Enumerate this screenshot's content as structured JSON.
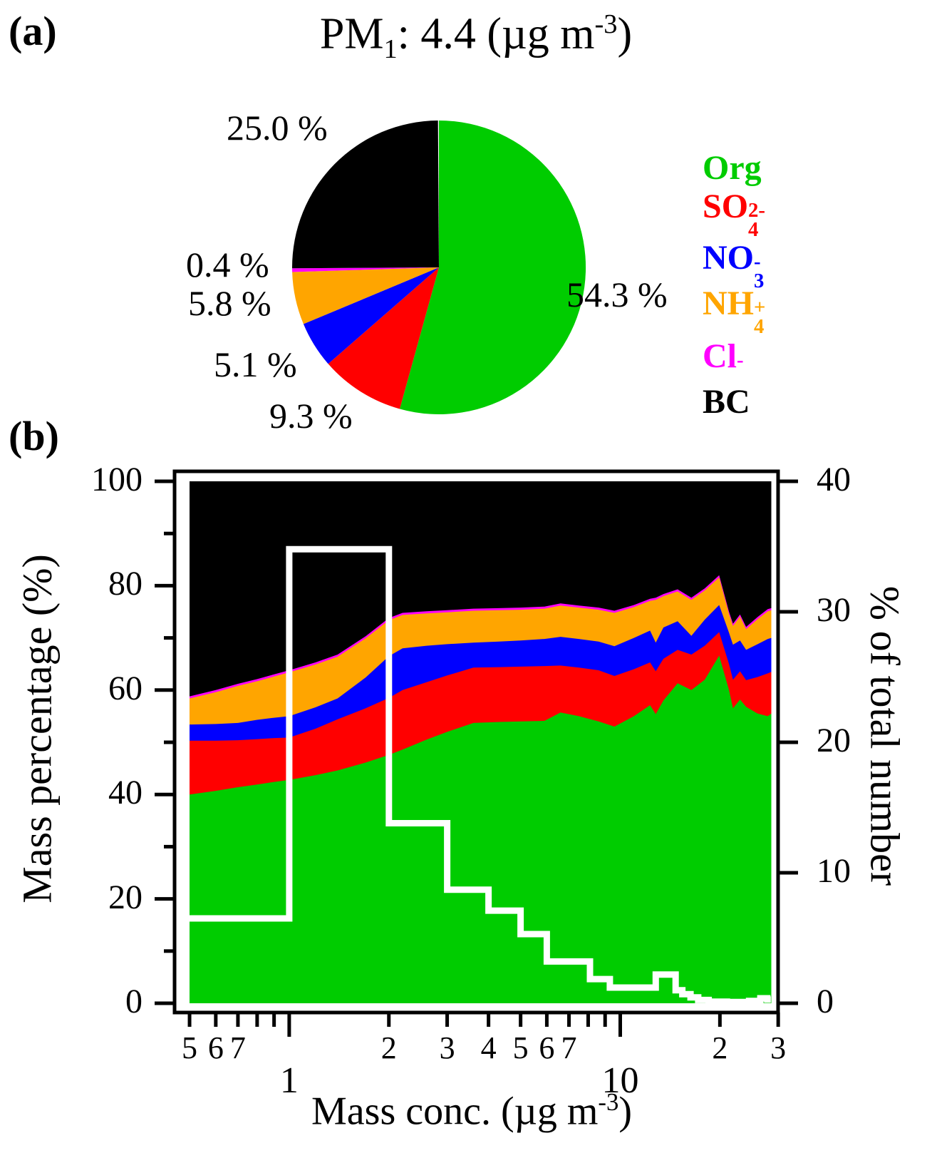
{
  "panel_a": {
    "label": "(a)",
    "title": {
      "pm": "PM",
      "sub": "1",
      "mid": ": 4.4 (µg m",
      "sup": "-3",
      "end": ")"
    },
    "legend": {
      "items": [
        {
          "text": "Org",
          "sub": "",
          "sup": "",
          "color": "#00CC00"
        },
        {
          "text": "SO",
          "sub": "4",
          "sup": "2-",
          "color": "#FF0000"
        },
        {
          "text": "NO",
          "sub": "3",
          "sup": "-",
          "color": "#0000FF"
        },
        {
          "text": "NH",
          "sub": "4",
          "sup": "+",
          "color": "#FFA500"
        },
        {
          "text": "Cl",
          "sub": "",
          "sup": "-",
          "color": "#FF00FF"
        },
        {
          "text": "BC",
          "sub": "",
          "sup": "",
          "color": "#000000"
        }
      ]
    }
  },
  "panel_b": {
    "label": "(b)",
    "y_left_title": "Mass percentage (%)",
    "y_right_title": "% of total number",
    "x_title_main": "Mass conc. (µg m",
    "x_title_sup": "-3",
    "x_title_end": ")"
  },
  "chart_data": [
    {
      "type": "pie",
      "title": "PM1: 4.4 (µg m-3)",
      "slices": [
        {
          "name": "Org",
          "pct": 54.3,
          "color": "#00CC00",
          "label": "54.3 %"
        },
        {
          "name": "SO4",
          "pct": 9.3,
          "color": "#FF0000",
          "label": "9.3 %"
        },
        {
          "name": "NO3",
          "pct": 5.1,
          "color": "#0000FF",
          "label": "5.1 %"
        },
        {
          "name": "NH4",
          "pct": 5.8,
          "color": "#FFA500",
          "label": "5.8 %"
        },
        {
          "name": "Cl",
          "pct": 0.4,
          "color": "#FF00FF",
          "label": "0.4 %"
        },
        {
          "name": "BC",
          "pct": 25.0,
          "color": "#000000",
          "label": "25.0 %"
        }
      ],
      "legend_position": "right"
    },
    {
      "type": "area",
      "xlabel": "Mass conc. (µg m-3)",
      "ylabel_left": "Mass percentage (%)",
      "ylabel_right": "% of total number",
      "x_log": true,
      "xlim": [
        0.45,
        30
      ],
      "ylim_left": [
        0,
        100
      ],
      "ylim_right": [
        0,
        40
      ],
      "grid": false,
      "series_order_bottom_to_top": [
        "Org",
        "SO4",
        "NO3",
        "NH4",
        "Cl",
        "BC"
      ],
      "colors": {
        "org": "#00CC00",
        "so4": "#FF0000",
        "no3": "#0000FF",
        "nh4": "#FFA500",
        "cl": "#FF00FF",
        "bc": "#000000"
      },
      "note": "samples are [x_ugm3, org_top%, so4_top%, no3_top%, nh4_top%, cl_top%]; BC fills from cl_top to 100",
      "samples": [
        [
          0.5,
          40.0,
          50.3,
          53.4,
          58.4,
          58.8
        ],
        [
          0.6,
          40.7,
          50.3,
          53.5,
          59.6,
          60.0
        ],
        [
          0.7,
          41.4,
          50.4,
          53.7,
          60.8,
          61.2
        ],
        [
          0.8,
          41.9,
          50.6,
          54.3,
          61.7,
          62.1
        ],
        [
          0.9,
          42.4,
          50.8,
          54.7,
          62.6,
          63.0
        ],
        [
          1.0,
          42.8,
          50.9,
          55.0,
          63.4,
          63.8
        ],
        [
          1.2,
          43.7,
          52.6,
          56.7,
          64.9,
          65.3
        ],
        [
          1.4,
          44.6,
          54.4,
          58.4,
          66.4,
          66.8
        ],
        [
          1.7,
          46.1,
          56.5,
          62.4,
          69.9,
          70.3
        ],
        [
          2.0,
          47.6,
          58.5,
          66.5,
          73.4,
          73.8
        ],
        [
          2.2,
          48.6,
          60.0,
          68.0,
          74.4,
          74.8
        ],
        [
          2.6,
          50.5,
          61.5,
          68.5,
          74.7,
          75.1
        ],
        [
          3.0,
          52.0,
          62.8,
          68.8,
          74.9,
          75.3
        ],
        [
          3.6,
          53.7,
          64.3,
          69.1,
          75.2,
          75.6
        ],
        [
          4.3,
          53.9,
          64.4,
          69.3,
          75.3,
          75.7
        ],
        [
          5.0,
          54.0,
          64.5,
          69.5,
          75.4,
          75.8
        ],
        [
          5.9,
          54.1,
          64.6,
          69.8,
          75.6,
          76.0
        ],
        [
          6.6,
          55.7,
          64.7,
          70.2,
          76.2,
          76.6
        ],
        [
          7.5,
          55.0,
          64.3,
          69.8,
          75.8,
          76.2
        ],
        [
          8.6,
          54.0,
          63.8,
          69.3,
          75.4,
          75.8
        ],
        [
          9.6,
          53.0,
          62.7,
          68.4,
          74.8,
          75.2
        ],
        [
          11.0,
          55.0,
          64.0,
          70.0,
          75.9,
          76.3
        ],
        [
          12.3,
          57.1,
          65.3,
          71.4,
          77.1,
          77.5
        ],
        [
          12.8,
          55.4,
          63.6,
          69.1,
          77.3,
          77.7
        ],
        [
          13.5,
          58.0,
          66.0,
          72.0,
          78.0,
          78.4
        ],
        [
          14.9,
          61.3,
          67.7,
          73.2,
          78.9,
          79.3
        ],
        [
          16.4,
          60.0,
          66.8,
          70.4,
          77.3,
          77.7
        ],
        [
          18.0,
          62.0,
          68.5,
          73.5,
          79.1,
          79.5
        ],
        [
          19.9,
          66.6,
          71.1,
          76.3,
          81.6,
          82.0
        ],
        [
          21.3,
          60.0,
          65.0,
          71.0,
          74.6,
          75.0
        ],
        [
          21.9,
          56.5,
          62.0,
          68.7,
          72.3,
          72.7
        ],
        [
          23.0,
          58.2,
          63.6,
          69.5,
          74.1,
          74.5
        ],
        [
          24.0,
          56.8,
          61.9,
          67.7,
          71.7,
          72.1
        ],
        [
          26.0,
          55.5,
          62.5,
          68.8,
          73.6,
          74.0
        ],
        [
          27.9,
          55.0,
          63.2,
          69.8,
          75.1,
          75.5
        ],
        [
          28.6,
          55.5,
          63.5,
          70.0,
          75.3,
          75.7
        ]
      ],
      "number_step": {
        "axis": "right",
        "color": "#FFFFFF",
        "note": "runs are [x_start, x_end, percent_of_total_number]",
        "runs": [
          [
            0.46,
            1,
            6.5
          ],
          [
            1,
            2,
            34.8
          ],
          [
            2,
            3,
            13.8
          ],
          [
            3,
            4,
            8.7
          ],
          [
            4,
            5,
            7.1
          ],
          [
            5,
            6,
            5.3
          ],
          [
            6,
            8.1,
            3.2
          ],
          [
            8.1,
            9.3,
            1.85
          ],
          [
            9.3,
            12.8,
            1.2
          ],
          [
            12.8,
            14.7,
            2.2
          ],
          [
            14.7,
            15.4,
            1.0
          ],
          [
            15.4,
            16.3,
            0.7
          ],
          [
            16.3,
            17.2,
            0.45
          ],
          [
            17.2,
            18.5,
            0.25
          ],
          [
            18.5,
            21,
            0.12
          ],
          [
            21,
            24.5,
            0.1
          ],
          [
            24.5,
            26.5,
            0.18
          ],
          [
            26.5,
            27.8,
            0.38
          ],
          [
            27.8,
            28.5,
            0.28
          ]
        ]
      },
      "axes": {
        "left_major_ticks": [
          {
            "label": "0",
            "value": 0
          },
          {
            "label": "20",
            "value": 20
          },
          {
            "label": "40",
            "value": 40
          },
          {
            "label": "60",
            "value": 60
          },
          {
            "label": "80",
            "value": 80
          },
          {
            "label": "100",
            "value": 100
          }
        ],
        "left_minor_tick_values": [
          10,
          30,
          50,
          70,
          90
        ],
        "right_major_ticks": [
          {
            "label": "0",
            "value": 0
          },
          {
            "label": "10",
            "value": 10
          },
          {
            "label": "20",
            "value": 20
          },
          {
            "label": "30",
            "value": 30
          },
          {
            "label": "40",
            "value": 40
          }
        ],
        "bottom_major_ticks": [
          {
            "label": "1",
            "value": 1
          },
          {
            "label": "10",
            "value": 10
          }
        ],
        "bottom_minor_tick_values": [
          0.5,
          0.6,
          0.7,
          0.8,
          0.9,
          2,
          3,
          4,
          5,
          6,
          7,
          8,
          9,
          20,
          30
        ],
        "bottom_minor_tick_labels": [
          {
            "label": "5",
            "value": 0.5
          },
          {
            "label": "6",
            "value": 0.6
          },
          {
            "label": "7",
            "value": 0.7
          },
          {
            "label": "2",
            "value": 2
          },
          {
            "label": "3",
            "value": 3
          },
          {
            "label": "4",
            "value": 4
          },
          {
            "label": "5",
            "value": 5
          },
          {
            "label": "6",
            "value": 6
          },
          {
            "label": "7",
            "value": 7
          },
          {
            "label": "2",
            "value": 20
          },
          {
            "label": "3",
            "value": 30
          }
        ]
      }
    }
  ]
}
